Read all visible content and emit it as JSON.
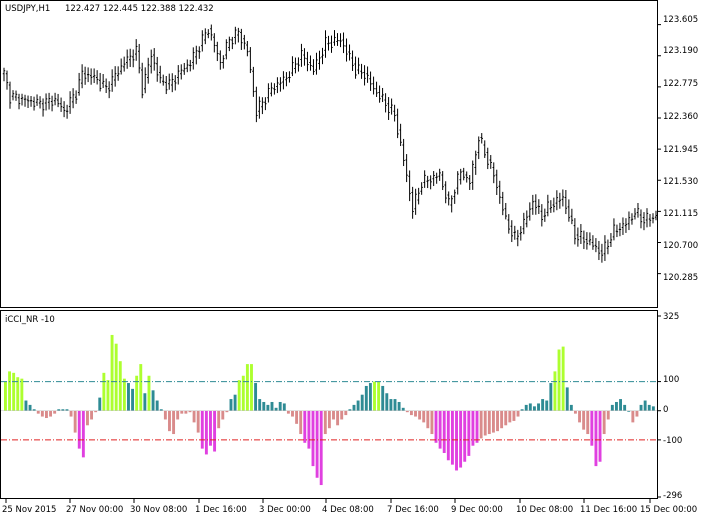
{
  "main_window": {
    "symbol_tf": "USDJPY,H1",
    "ohlc": "122.427  122.445  122.388  122.432",
    "price_ticks": [
      "123.605",
      "123.190",
      "122.775",
      "122.360",
      "121.945",
      "121.530",
      "121.115",
      "120.700",
      "120.285"
    ]
  },
  "indicator_window": {
    "name": "iCCI_NR -10",
    "ticks": [
      "325",
      "100",
      "0",
      "-100",
      "-296"
    ],
    "levels": [
      100,
      -100
    ],
    "colors": {
      "up_strong": "#adff2f",
      "up": "#2e8b94",
      "down": "#d98b8b",
      "down_strong": "#e040e0",
      "level_up": "#2e8b94",
      "level_down": "#e02020",
      "price": "#000000"
    }
  },
  "time_axis": [
    "25 Nov 2015",
    "27 Nov 00:00",
    "30 Nov 08:00",
    "1 Dec 16:00",
    "3 Dec 00:00",
    "4 Dec 08:00",
    "7 Dec 16:00",
    "9 Dec 00:00",
    "10 Dec 08:00",
    "11 Dec 16:00",
    "15 Dec 00:00"
  ],
  "chart_data": [
    {
      "type": "line",
      "title": "USDJPY,H1",
      "ylim": [
        120.0,
        123.8
      ],
      "anchor_x": [
        0,
        2,
        7,
        12,
        17,
        20,
        24,
        26,
        30,
        34,
        40,
        44,
        46,
        49,
        52,
        55,
        58,
        62,
        68,
        72,
        75,
        78,
        81,
        84,
        89,
        94,
        99,
        103,
        107,
        112,
        117,
        120,
        123,
        126,
        130,
        133,
        136,
        139,
        145,
        148,
        152,
        155,
        158,
        160,
        163,
        167,
        170,
        173,
        176,
        179,
        182,
        186,
        190,
        195,
        199,
        203,
        207,
        210,
        213,
        217
      ],
      "anchor_y": [
        122.95,
        122.65,
        122.6,
        122.55,
        122.6,
        122.45,
        122.7,
        122.95,
        122.9,
        122.75,
        123.1,
        123.25,
        122.75,
        123.2,
        122.85,
        122.8,
        122.95,
        123.1,
        123.55,
        123.1,
        123.4,
        123.5,
        123.25,
        122.45,
        122.75,
        122.9,
        123.2,
        123.0,
        123.35,
        123.4,
        123.0,
        122.95,
        122.75,
        122.6,
        122.4,
        121.8,
        121.15,
        121.5,
        121.6,
        121.2,
        121.65,
        121.5,
        122.1,
        121.9,
        121.6,
        121.0,
        120.75,
        120.95,
        121.25,
        121.05,
        121.2,
        121.3,
        120.8,
        120.7,
        120.55,
        120.85,
        120.95,
        121.1,
        121.0,
        121.05
      ]
    },
    {
      "type": "bar",
      "title": "iCCI_NR -10",
      "ylim": [
        -296,
        325
      ],
      "values": [
        100,
        135,
        130,
        115,
        110,
        35,
        20,
        5,
        -10,
        -20,
        -25,
        -20,
        -10,
        5,
        5,
        5,
        -20,
        -75,
        -130,
        -160,
        -50,
        -30,
        -5,
        45,
        130,
        105,
        260,
        230,
        170,
        110,
        95,
        75,
        120,
        160,
        60,
        120,
        70,
        35,
        5,
        -30,
        -70,
        -80,
        -30,
        -10,
        -10,
        -5,
        -40,
        -75,
        -130,
        -150,
        -120,
        -140,
        -60,
        -30,
        -5,
        40,
        55,
        105,
        120,
        160,
        160,
        95,
        40,
        30,
        20,
        30,
        10,
        30,
        25,
        -10,
        -20,
        -45,
        -80,
        -110,
        -130,
        -190,
        -230,
        -255,
        -80,
        -60,
        -30,
        -50,
        -30,
        -15,
        5,
        20,
        35,
        55,
        85,
        95,
        100,
        100,
        85,
        60,
        40,
        40,
        30,
        10,
        -5,
        -15,
        -20,
        -30,
        -40,
        -60,
        -80,
        -110,
        -130,
        -145,
        -170,
        -185,
        -205,
        -195,
        -175,
        -155,
        -120,
        -110,
        -95,
        -85,
        -80,
        -75,
        -70,
        -60,
        -50,
        -40,
        -35,
        -20,
        5,
        20,
        25,
        15,
        25,
        40,
        35,
        95,
        135,
        210,
        220,
        80,
        20,
        -10,
        -40,
        -65,
        -80,
        -120,
        -190,
        -175,
        -80,
        -30,
        20,
        30,
        40,
        20,
        0,
        -40,
        -20,
        20,
        35,
        20,
        15
      ]
    }
  ]
}
